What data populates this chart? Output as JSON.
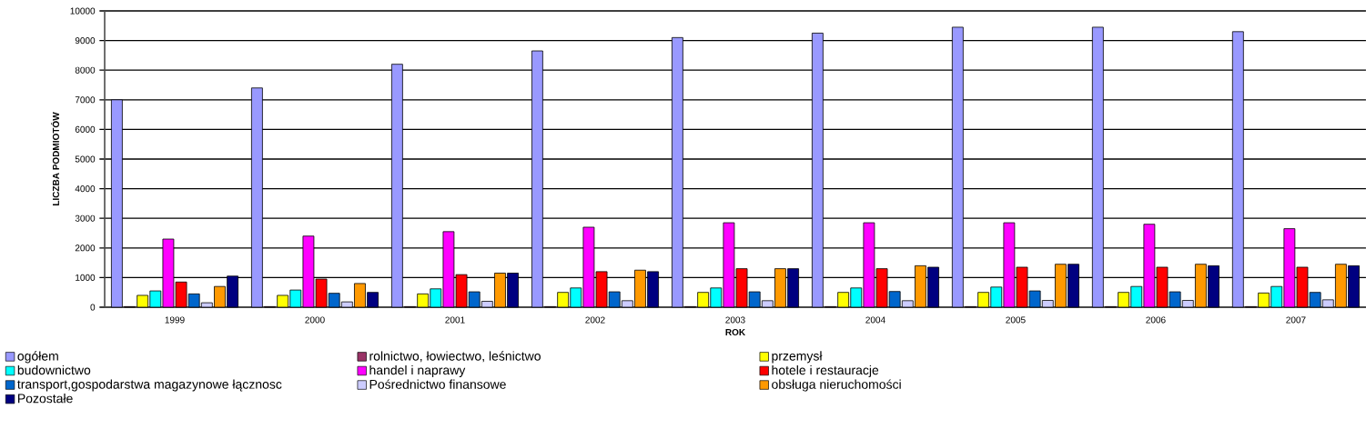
{
  "chart_data": {
    "type": "bar",
    "xlabel": "ROK",
    "ylabel": "LICZBA PODMIOTÓW",
    "categories": [
      "1999",
      "2000",
      "2001",
      "2002",
      "2003",
      "2004",
      "2005",
      "2006",
      "2007"
    ],
    "series": [
      {
        "name": "ogółem",
        "color": "#9999ff",
        "values": [
          7000,
          7400,
          8200,
          8650,
          9100,
          9250,
          9450,
          9450,
          9300
        ]
      },
      {
        "name": "rolnictwo, łowiectwo, leśnictwo",
        "color": "#993366",
        "values": [
          20,
          20,
          20,
          20,
          20,
          20,
          20,
          20,
          20
        ]
      },
      {
        "name": "przemysł",
        "color": "#ffff00",
        "values": [
          400,
          400,
          450,
          500,
          500,
          500,
          500,
          500,
          480
        ]
      },
      {
        "name": "budownictwo",
        "color": "#00ffff",
        "values": [
          550,
          580,
          620,
          650,
          650,
          650,
          680,
          700,
          700
        ]
      },
      {
        "name": "handel i naprawy",
        "color": "#ff00ff",
        "values": [
          2300,
          2400,
          2550,
          2700,
          2850,
          2850,
          2850,
          2800,
          2650
        ]
      },
      {
        "name": "hotele i restauracje",
        "color": "#ff0000",
        "values": [
          850,
          950,
          1100,
          1200,
          1300,
          1300,
          1350,
          1350,
          1350
        ]
      },
      {
        "name": "transport,gospodarstwa magazynowe łącznosc",
        "color": "#0066cc",
        "values": [
          450,
          470,
          520,
          520,
          520,
          530,
          550,
          520,
          500
        ]
      },
      {
        "name": "Pośrednictwo finansowe",
        "color": "#ccccff",
        "values": [
          150,
          180,
          200,
          220,
          220,
          220,
          230,
          230,
          250
        ]
      },
      {
        "name": "obsługa nieruchomości",
        "color": "#ff9900",
        "values": [
          700,
          800,
          1150,
          1250,
          1300,
          1400,
          1450,
          1450,
          1450
        ]
      },
      {
        "name": "Pozostałe",
        "color": "#000080",
        "values": [
          1050,
          500,
          1150,
          1200,
          1300,
          1350,
          1450,
          1400,
          1400
        ]
      }
    ],
    "ylim": [
      0,
      10000
    ],
    "yticks": [
      0,
      1000,
      2000,
      3000,
      4000,
      5000,
      6000,
      7000,
      8000,
      9000,
      10000
    ],
    "grid": "y",
    "legend": "bottom"
  }
}
